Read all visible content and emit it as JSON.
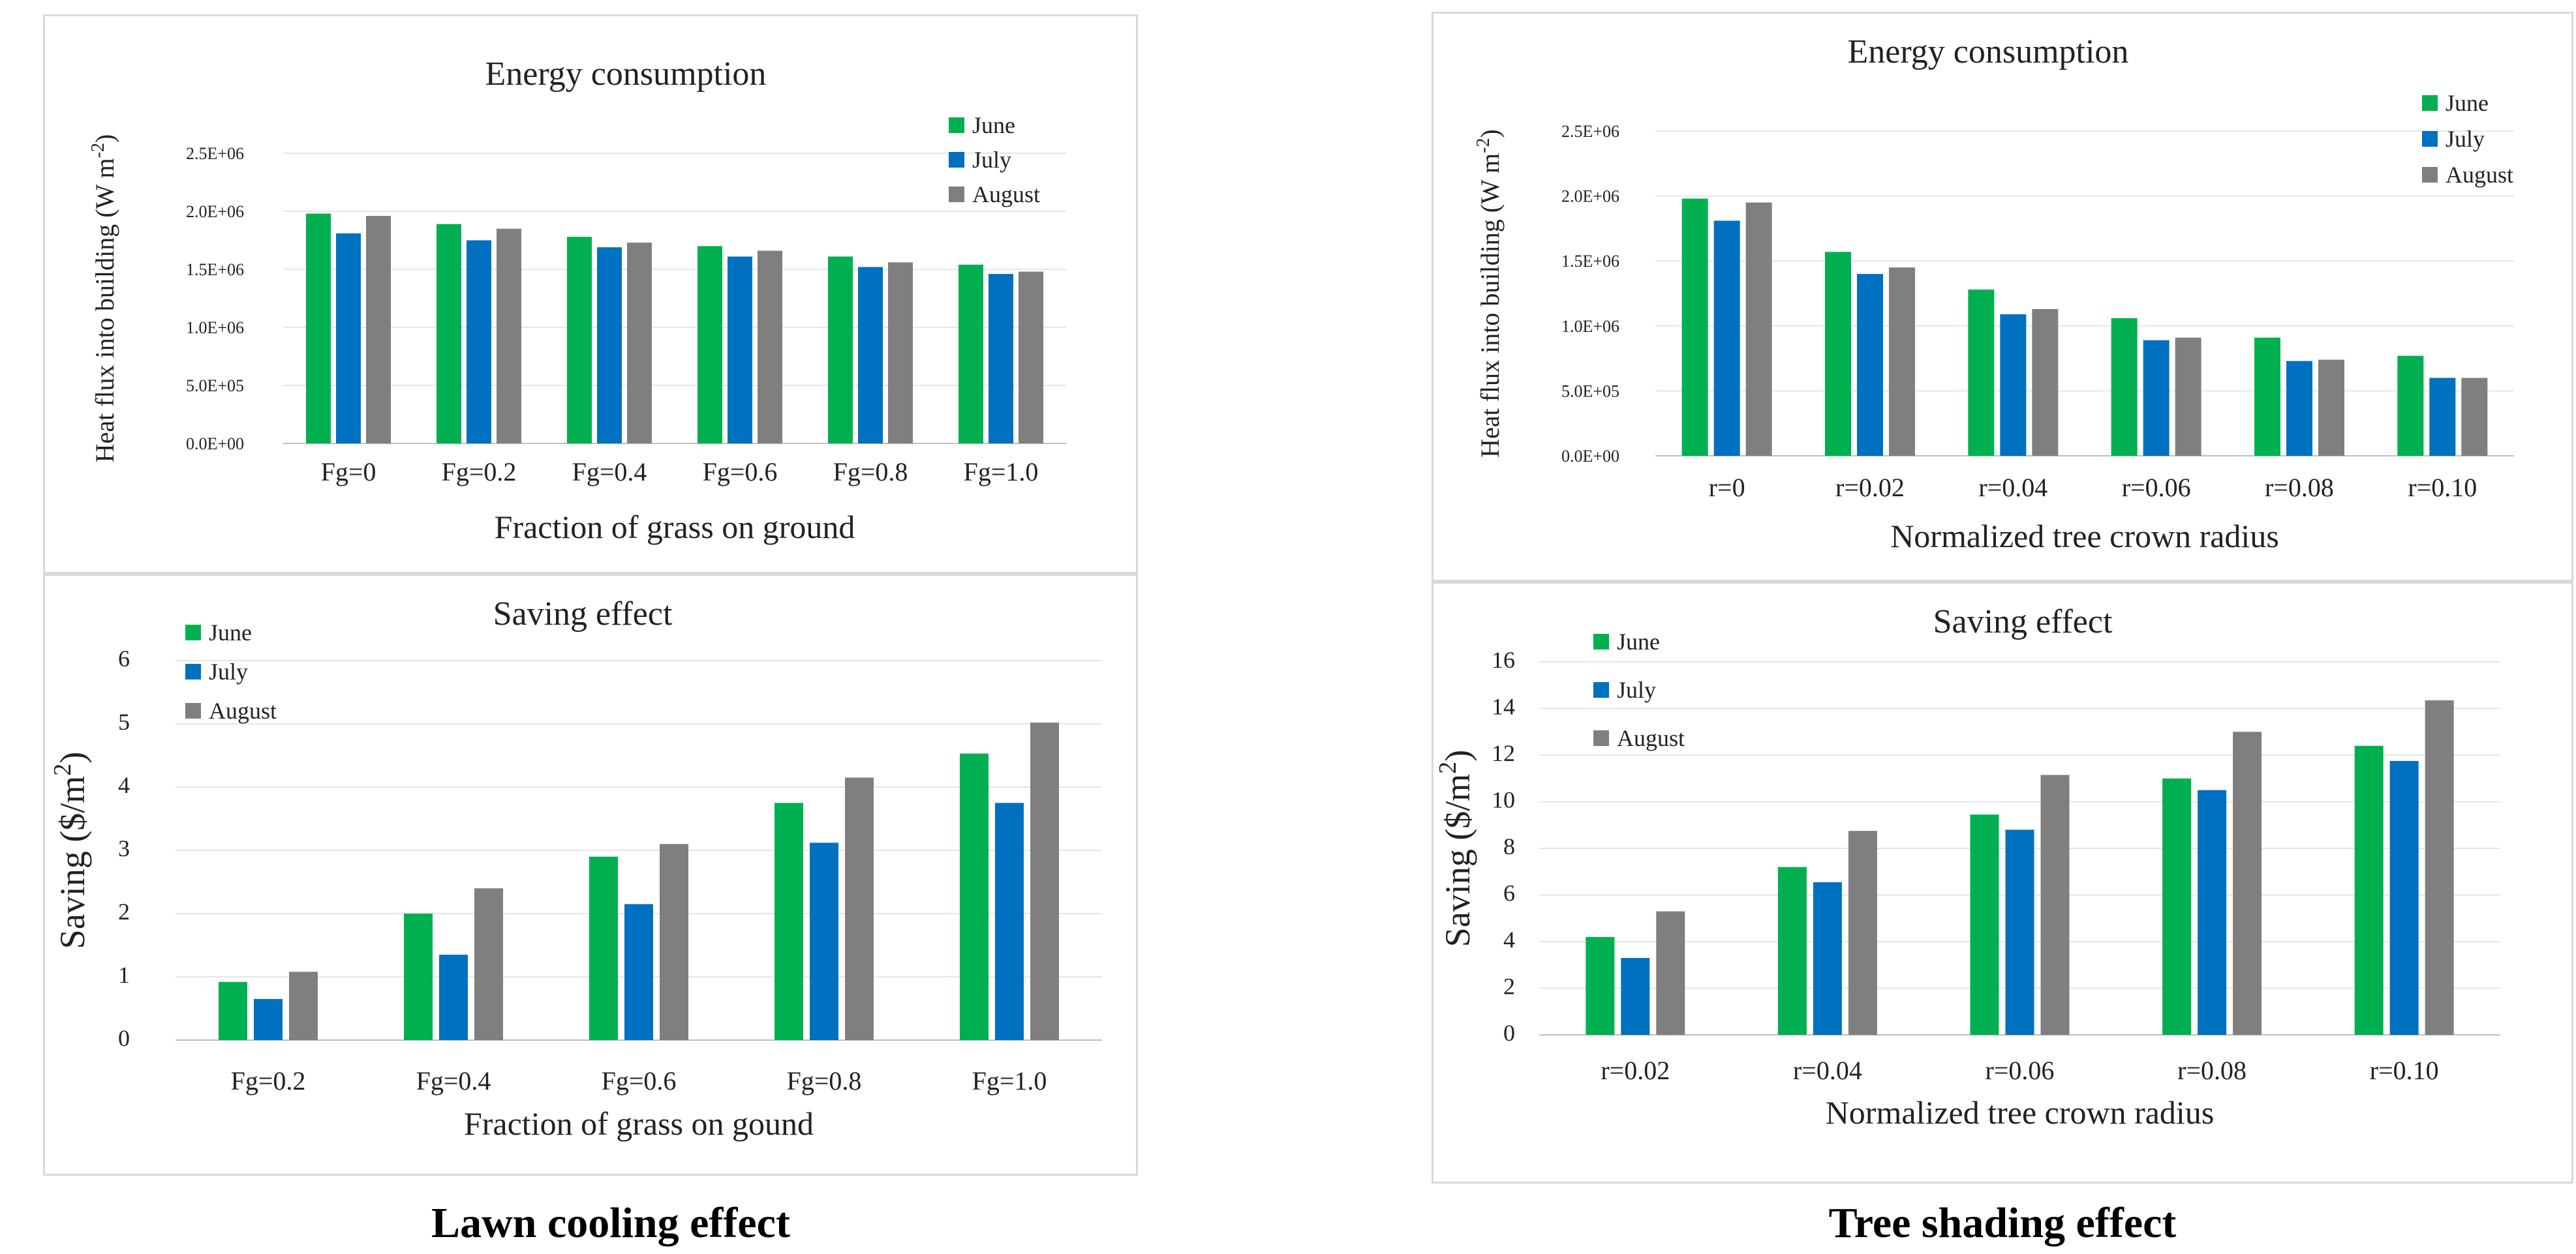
{
  "captions": {
    "left": "Lawn cooling effect",
    "right": "Tree shading effect"
  },
  "colors": {
    "June": "#00b050",
    "July": "#0070c0",
    "August": "#7f7f7f",
    "grid": "#e6e6e6"
  },
  "chart_data": [
    {
      "id": "lawn-energy",
      "type": "bar",
      "title": "Energy consumption",
      "xlabel": "Fraction of grass on ground",
      "ylabel": "Heat flux into building (W m",
      "ylabel_sup": "-2",
      "ylabel_end": ")",
      "categories": [
        "Fg=0",
        "Fg=0.2",
        "Fg=0.4",
        "Fg=0.6",
        "Fg=0.8",
        "Fg=1.0"
      ],
      "ylim": [
        0,
        2500000
      ],
      "yticks": [
        0,
        500000,
        1000000,
        1500000,
        2000000,
        2500000
      ],
      "ytick_labels": [
        "0.0E+00",
        "5.0E+05",
        "1.0E+06",
        "1.5E+06",
        "2.0E+06",
        "2.5E+06"
      ],
      "legend": "top-right",
      "series": [
        {
          "name": "June",
          "values": [
            1980000,
            1890000,
            1780000,
            1700000,
            1610000,
            1540000
          ]
        },
        {
          "name": "July",
          "values": [
            1810000,
            1750000,
            1690000,
            1610000,
            1520000,
            1460000
          ]
        },
        {
          "name": "August",
          "values": [
            1960000,
            1850000,
            1730000,
            1660000,
            1560000,
            1480000
          ]
        }
      ]
    },
    {
      "id": "lawn-saving",
      "type": "bar",
      "title": "Saving effect",
      "xlabel": "Fraction of grass on gound",
      "ylabel": "Saving  ($/m",
      "ylabel_sup": "2",
      "ylabel_end": ")",
      "categories": [
        "Fg=0.2",
        "Fg=0.4",
        "Fg=0.6",
        "Fg=0.8",
        "Fg=1.0"
      ],
      "ylim": [
        0,
        6
      ],
      "yticks": [
        0,
        1,
        2,
        3,
        4,
        5,
        6
      ],
      "ytick_labels": [
        "0",
        "1",
        "2",
        "3",
        "4",
        "5",
        "6"
      ],
      "legend": "top-left",
      "series": [
        {
          "name": "June",
          "values": [
            0.92,
            2.0,
            2.9,
            3.75,
            4.53
          ]
        },
        {
          "name": "July",
          "values": [
            0.65,
            1.35,
            2.15,
            3.12,
            3.75
          ]
        },
        {
          "name": "August",
          "values": [
            1.08,
            2.4,
            3.1,
            4.15,
            5.02
          ]
        }
      ]
    },
    {
      "id": "tree-energy",
      "type": "bar",
      "title": "Energy consumption",
      "xlabel": "Normalized tree crown radius",
      "ylabel": "Heat flux into building (W m",
      "ylabel_sup": "-2",
      "ylabel_end": ")",
      "categories": [
        "r=0",
        "r=0.02",
        "r=0.04",
        "r=0.06",
        "r=0.08",
        "r=0.10"
      ],
      "ylim": [
        0,
        2500000
      ],
      "yticks": [
        0,
        500000,
        1000000,
        1500000,
        2000000,
        2500000
      ],
      "ytick_labels": [
        "0.0E+00",
        "5.0E+05",
        "1.0E+06",
        "1.5E+06",
        "2.0E+06",
        "2.5E+06"
      ],
      "legend": "top-right",
      "series": [
        {
          "name": "June",
          "values": [
            1980000,
            1570000,
            1280000,
            1060000,
            910000,
            770000
          ]
        },
        {
          "name": "July",
          "values": [
            1810000,
            1400000,
            1090000,
            890000,
            730000,
            600000
          ]
        },
        {
          "name": "August",
          "values": [
            1950000,
            1450000,
            1130000,
            910000,
            740000,
            600000
          ]
        }
      ]
    },
    {
      "id": "tree-saving",
      "type": "bar",
      "title": "Saving effect",
      "xlabel": "Normalized tree crown radius",
      "ylabel": "Saving  ($/m",
      "ylabel_sup": "2",
      "ylabel_end": ")",
      "categories": [
        "r=0.02",
        "r=0.04",
        "r=0.06",
        "r=0.08",
        "r=0.10"
      ],
      "ylim": [
        0,
        16
      ],
      "yticks": [
        0,
        2,
        4,
        6,
        8,
        10,
        12,
        14,
        16
      ],
      "ytick_labels": [
        "0",
        "2",
        "4",
        "6",
        "8",
        "10",
        "12",
        "14",
        "16"
      ],
      "legend": "top-left",
      "series": [
        {
          "name": "June",
          "values": [
            4.2,
            7.2,
            9.45,
            11.0,
            12.4
          ]
        },
        {
          "name": "July",
          "values": [
            3.3,
            6.55,
            8.8,
            10.5,
            11.75
          ]
        },
        {
          "name": "August",
          "values": [
            5.3,
            8.75,
            11.15,
            13.0,
            14.35
          ]
        }
      ]
    }
  ]
}
